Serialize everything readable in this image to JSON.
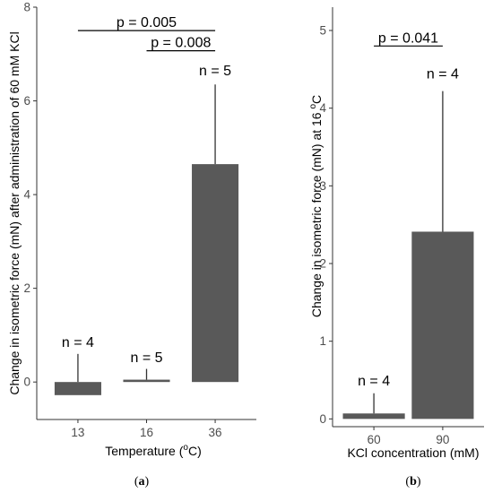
{
  "colors": {
    "bar": "#595959",
    "axis": "#333333",
    "text": "#000000",
    "tick_text": "#4d4d4d"
  },
  "chart_data": [
    {
      "type": "bar",
      "panel_label": "a",
      "categories": [
        "13",
        "16",
        "36"
      ],
      "values": [
        -0.28,
        0.05,
        4.65
      ],
      "error_upper": [
        0.6,
        0.28,
        6.35
      ],
      "xlabel_main": "Temperature (",
      "xlabel_sup": "o",
      "xlabel_end": "C)",
      "ylabel": "Change in isometric force (mN) after administration of 60 mM KCl",
      "ylim": [
        -0.8,
        8
      ],
      "yticks": [
        0,
        2,
        4,
        6,
        8
      ],
      "n_labels": [
        {
          "text": "n = 4",
          "at": 0.75
        },
        {
          "text": "n = 5",
          "at": 0.42
        },
        {
          "text": "n = 5",
          "at": 6.55
        }
      ],
      "significance": [
        {
          "text": "p = 0.005",
          "from": 0,
          "to": 2,
          "y": 7.5
        },
        {
          "text": "p = 0.008",
          "from": 1,
          "to": 2,
          "y": 7.07
        }
      ],
      "grid": false
    },
    {
      "type": "bar",
      "panel_label": "b",
      "categories": [
        "60",
        "90"
      ],
      "values": [
        0.07,
        2.41
      ],
      "error_upper": [
        0.33,
        4.22
      ],
      "xlabel": "KCl concentration (mM)",
      "ylabel_main": "Change in isometric force (mN) at 16 ",
      "ylabel_sup": "o",
      "ylabel_end": "C",
      "ylim": [
        -0.1,
        5.3
      ],
      "yticks": [
        0,
        1,
        2,
        3,
        4,
        5
      ],
      "n_labels": [
        {
          "text": "n = 4",
          "at": 0.43
        },
        {
          "text": "n = 4",
          "at": 4.38
        }
      ],
      "significance": [
        {
          "text": "p = 0.041",
          "from": 0,
          "to": 1,
          "y": 4.8
        }
      ],
      "grid": false
    }
  ]
}
